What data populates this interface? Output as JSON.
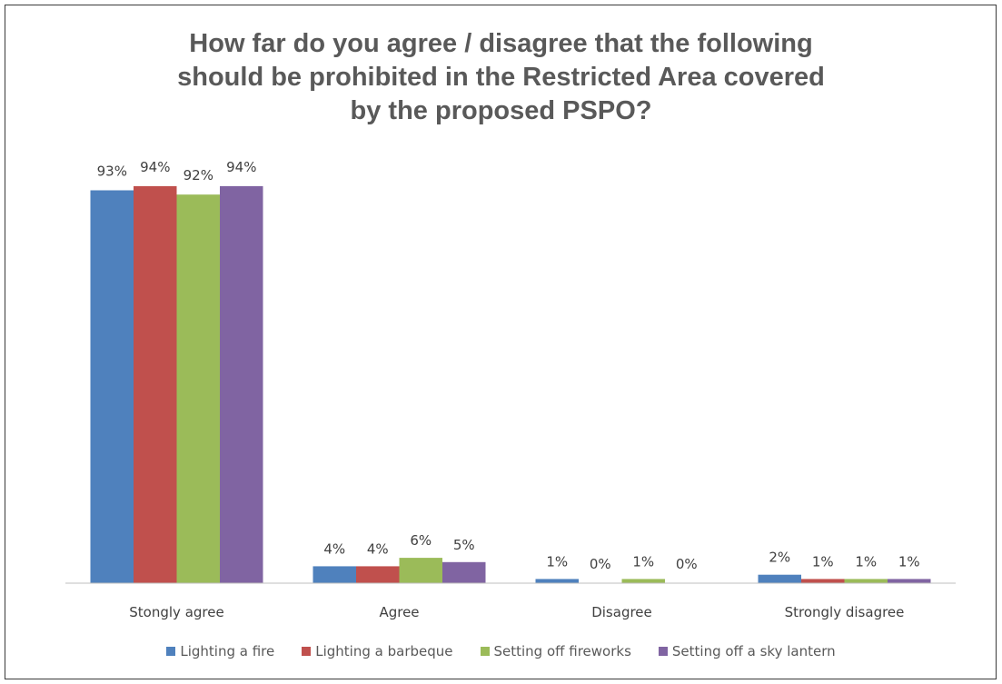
{
  "chart_data": {
    "type": "bar",
    "title_lines": [
      "How far do you agree / disagree that the following",
      "should be prohibited in the Restricted Area covered",
      "by the proposed PSPO?"
    ],
    "categories": [
      "Stongly agree",
      "Agree",
      "Disagree",
      "Strongly disagree"
    ],
    "series": [
      {
        "name": "Lighting a fire",
        "color": "#4f81bd",
        "values": [
          93,
          4,
          1,
          2
        ],
        "labels": [
          "93%",
          "4%",
          "1%",
          "2%"
        ]
      },
      {
        "name": "Lighting a barbeque",
        "color": "#c0504d",
        "values": [
          94,
          4,
          0,
          1
        ],
        "labels": [
          "94%",
          "4%",
          "0%",
          "1%"
        ]
      },
      {
        "name": "Setting off fireworks",
        "color": "#9bbb59",
        "values": [
          92,
          6,
          1,
          1
        ],
        "labels": [
          "92%",
          "6%",
          "1%",
          "1%"
        ]
      },
      {
        "name": "Setting off a sky lantern",
        "color": "#8064a2",
        "values": [
          94,
          5,
          0,
          1
        ],
        "labels": [
          "94%",
          "5%",
          "0%",
          "1%"
        ]
      }
    ],
    "value_unit": "%",
    "ylim": [
      0,
      100
    ],
    "grid": false,
    "legend_position": "bottom"
  }
}
